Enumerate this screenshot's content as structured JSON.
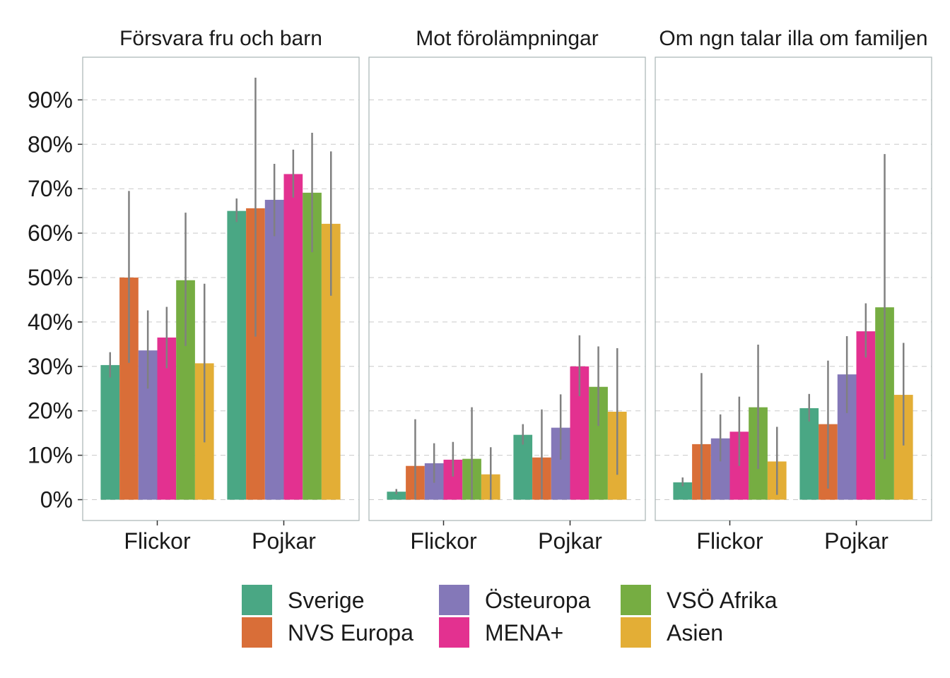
{
  "chart_data": {
    "type": "bar",
    "categories": [
      "Flickor",
      "Pojkar"
    ],
    "y_tick_labels": [
      "0%",
      "10%",
      "20%",
      "30%",
      "40%",
      "50%",
      "60%",
      "70%",
      "80%",
      "90%"
    ],
    "ylim": [
      -4.5,
      99
    ],
    "grid": "horizontal dashed",
    "legend_position": "bottom",
    "series_names": [
      "Sverige",
      "NVS Europa",
      "Östeuropa",
      "MENA+",
      "VSÖ Afrika",
      "Asien"
    ],
    "colors": [
      "#4aa784",
      "#d96e38",
      "#8478b8",
      "#e33190",
      "#76ad42",
      "#e3ae36"
    ],
    "errorbar_color": "#808080",
    "panels": [
      {
        "title": "Försvara fru och barn",
        "series": [
          {
            "name": "Sverige",
            "values": [
              30.3,
              65.0
            ],
            "lower": [
              27.5,
              62.5
            ],
            "upper": [
              33.2,
              67.8
            ]
          },
          {
            "name": "NVS Europa",
            "values": [
              50.0,
              65.6
            ],
            "lower": [
              30.8,
              36.7
            ],
            "upper": [
              69.5,
              95.0
            ]
          },
          {
            "name": "Östeuropa",
            "values": [
              33.6,
              67.5
            ],
            "lower": [
              25.0,
              59.3
            ],
            "upper": [
              42.6,
              75.6
            ]
          },
          {
            "name": "MENA+",
            "values": [
              36.5,
              73.3
            ],
            "lower": [
              29.6,
              68.0
            ],
            "upper": [
              43.4,
              78.8
            ]
          },
          {
            "name": "VSÖ Afrika",
            "values": [
              49.4,
              69.1
            ],
            "lower": [
              34.6,
              55.7
            ],
            "upper": [
              64.6,
              82.6
            ]
          },
          {
            "name": "Asien",
            "values": [
              30.7,
              62.1
            ],
            "lower": [
              12.9,
              45.9
            ],
            "upper": [
              48.6,
              78.4
            ]
          }
        ]
      },
      {
        "title": "Mot förolämpningar",
        "series": [
          {
            "name": "Sverige",
            "values": [
              1.8,
              14.6
            ],
            "lower": [
              1.2,
              12.4
            ],
            "upper": [
              2.4,
              17.0
            ]
          },
          {
            "name": "NVS Europa",
            "values": [
              7.6,
              9.5
            ],
            "lower": [
              0.0,
              0.0
            ],
            "upper": [
              18.1,
              20.3
            ]
          },
          {
            "name": "Östeuropa",
            "values": [
              8.2,
              16.2
            ],
            "lower": [
              3.8,
              9.0
            ],
            "upper": [
              12.7,
              23.7
            ]
          },
          {
            "name": "MENA+",
            "values": [
              9.0,
              30.0
            ],
            "lower": [
              5.2,
              23.3
            ],
            "upper": [
              13.0,
              37.0
            ]
          },
          {
            "name": "VSÖ Afrika",
            "values": [
              9.2,
              25.4
            ],
            "lower": [
              0.0,
              16.6
            ],
            "upper": [
              20.8,
              34.5
            ]
          },
          {
            "name": "Asien",
            "values": [
              5.7,
              19.8
            ],
            "lower": [
              0.0,
              5.6
            ],
            "upper": [
              11.8,
              34.1
            ]
          }
        ]
      },
      {
        "title": "Om ngn talar illa om familjen",
        "series": [
          {
            "name": "Sverige",
            "values": [
              3.9,
              20.6
            ],
            "lower": [
              3.0,
              17.6
            ],
            "upper": [
              5.0,
              23.8
            ]
          },
          {
            "name": "NVS Europa",
            "values": [
              12.5,
              17.0
            ],
            "lower": [
              0.0,
              2.5
            ],
            "upper": [
              28.5,
              31.3
            ]
          },
          {
            "name": "Östeuropa",
            "values": [
              13.8,
              28.2
            ],
            "lower": [
              8.6,
              19.5
            ],
            "upper": [
              19.2,
              36.8
            ]
          },
          {
            "name": "MENA+",
            "values": [
              15.3,
              37.9
            ],
            "lower": [
              7.6,
              32.0
            ],
            "upper": [
              23.2,
              44.2
            ]
          },
          {
            "name": "VSÖ Afrika",
            "values": [
              20.8,
              43.3
            ],
            "lower": [
              6.9,
              9.1
            ],
            "upper": [
              34.9,
              77.8
            ]
          },
          {
            "name": "Asien",
            "values": [
              8.6,
              23.6
            ],
            "lower": [
              1.1,
              12.2
            ],
            "upper": [
              16.4,
              35.3
            ]
          }
        ]
      }
    ]
  }
}
